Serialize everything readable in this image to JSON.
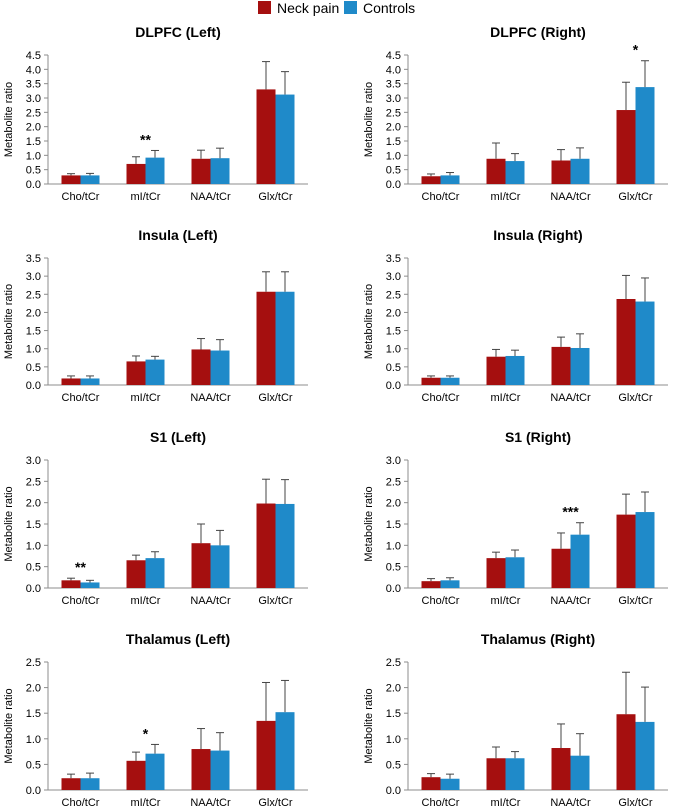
{
  "legend": {
    "series": [
      {
        "name": "Neck pain",
        "color": "#a50f0f"
      },
      {
        "name": "Controls",
        "color": "#1f8ac9"
      }
    ]
  },
  "chart_data": [
    {
      "type": "bar",
      "title": "DLPFC (Left)",
      "ylabel": "Metabolite ratio",
      "categories": [
        "Cho/tCr",
        "mI/tCr",
        "NAA/tCr",
        "Glx/tCr"
      ],
      "ylim": [
        0,
        4.5
      ],
      "ytick_step": 0.5,
      "ytick_labels": [
        "0.0",
        "0.5",
        "1.0",
        "1.5",
        "2.0",
        "2.5",
        "3.0",
        "3.5",
        "4.0",
        "4.5"
      ],
      "series": [
        {
          "name": "Neck pain",
          "values": [
            0.3,
            0.7,
            0.88,
            3.3
          ],
          "errors": [
            0.06,
            0.25,
            0.3,
            0.97
          ]
        },
        {
          "name": "Controls",
          "values": [
            0.3,
            0.92,
            0.9,
            3.12
          ],
          "errors": [
            0.07,
            0.25,
            0.35,
            0.8
          ]
        }
      ],
      "annotations": [
        {
          "category": "mI/tCr",
          "text": "**"
        }
      ]
    },
    {
      "type": "bar",
      "title": "DLPFC (Right)",
      "ylabel": "Metabolite ratio",
      "categories": [
        "Cho/tCr",
        "mI/tCr",
        "NAA/tCr",
        "Glx/tCr"
      ],
      "ylim": [
        0,
        4.5
      ],
      "ytick_step": 0.5,
      "ytick_labels": [
        "0.0",
        "0.5",
        "1.0",
        "1.5",
        "2.0",
        "2.5",
        "3.0",
        "3.5",
        "4.0",
        "4.5"
      ],
      "series": [
        {
          "name": "Neck pain",
          "values": [
            0.27,
            0.88,
            0.82,
            2.58
          ],
          "errors": [
            0.08,
            0.55,
            0.38,
            0.97
          ]
        },
        {
          "name": "Controls",
          "values": [
            0.3,
            0.8,
            0.88,
            3.38
          ],
          "errors": [
            0.1,
            0.26,
            0.38,
            0.92
          ]
        }
      ],
      "annotations": [
        {
          "category": "Glx/tCr",
          "text": "*"
        }
      ]
    },
    {
      "type": "bar",
      "title": "Insula (Left)",
      "ylabel": "Metabolite ratio",
      "categories": [
        "Cho/tCr",
        "mI/tCr",
        "NAA/tCr",
        "Glx/tCr"
      ],
      "ylim": [
        0,
        3.5
      ],
      "ytick_step": 0.5,
      "ytick_labels": [
        "0.0",
        "0.5",
        "1.0",
        "1.5",
        "2.0",
        "2.5",
        "3.0",
        "3.5"
      ],
      "series": [
        {
          "name": "Neck pain",
          "values": [
            0.18,
            0.65,
            0.98,
            2.57
          ],
          "errors": [
            0.07,
            0.15,
            0.3,
            0.55
          ]
        },
        {
          "name": "Controls",
          "values": [
            0.18,
            0.7,
            0.95,
            2.57
          ],
          "errors": [
            0.07,
            0.09,
            0.3,
            0.55
          ]
        }
      ],
      "annotations": []
    },
    {
      "type": "bar",
      "title": "Insula (Right)",
      "ylabel": "Metabolite ratio",
      "categories": [
        "Cho/tCr",
        "mI/tCr",
        "NAA/tCr",
        "Glx/tCr"
      ],
      "ylim": [
        0,
        3.5
      ],
      "ytick_step": 0.5,
      "ytick_labels": [
        "0.0",
        "0.5",
        "1.0",
        "1.5",
        "2.0",
        "2.5",
        "3.0",
        "3.5"
      ],
      "series": [
        {
          "name": "Neck pain",
          "values": [
            0.2,
            0.78,
            1.05,
            2.37
          ],
          "errors": [
            0.05,
            0.2,
            0.27,
            0.65
          ]
        },
        {
          "name": "Controls",
          "values": [
            0.2,
            0.8,
            1.02,
            2.3
          ],
          "errors": [
            0.05,
            0.16,
            0.39,
            0.65
          ]
        }
      ],
      "annotations": []
    },
    {
      "type": "bar",
      "title": "S1 (Left)",
      "ylabel": "Metabolite ratio",
      "categories": [
        "Cho/tCr",
        "mI/tCr",
        "NAA/tCr",
        "Glx/tCr"
      ],
      "ylim": [
        0,
        3.0
      ],
      "ytick_step": 0.5,
      "ytick_labels": [
        "0.0",
        "0.5",
        "1.0",
        "1.5",
        "2.0",
        "2.5",
        "3.0"
      ],
      "series": [
        {
          "name": "Neck pain",
          "values": [
            0.18,
            0.65,
            1.05,
            1.98
          ],
          "errors": [
            0.05,
            0.12,
            0.45,
            0.57
          ]
        },
        {
          "name": "Controls",
          "values": [
            0.13,
            0.7,
            1.0,
            1.97
          ],
          "errors": [
            0.05,
            0.15,
            0.35,
            0.57
          ]
        }
      ],
      "annotations": [
        {
          "category": "Cho/tCr",
          "text": "**"
        }
      ]
    },
    {
      "type": "bar",
      "title": "S1 (Right)",
      "ylabel": "Metabolite ratio",
      "categories": [
        "Cho/tCr",
        "mI/tCr",
        "NAA/tCr",
        "Glx/tCr"
      ],
      "ylim": [
        0,
        3.0
      ],
      "ytick_step": 0.5,
      "ytick_labels": [
        "0.0",
        "0.5",
        "1.0",
        "1.5",
        "2.0",
        "2.5",
        "3.0"
      ],
      "series": [
        {
          "name": "Neck pain",
          "values": [
            0.16,
            0.7,
            0.92,
            1.72
          ],
          "errors": [
            0.06,
            0.14,
            0.37,
            0.48
          ]
        },
        {
          "name": "Controls",
          "values": [
            0.18,
            0.72,
            1.25,
            1.78
          ],
          "errors": [
            0.06,
            0.17,
            0.28,
            0.47
          ]
        }
      ],
      "annotations": [
        {
          "category": "NAA/tCr",
          "text": "***"
        }
      ]
    },
    {
      "type": "bar",
      "title": "Thalamus (Left)",
      "ylabel": "Metabolite ratio",
      "categories": [
        "Cho/tCr",
        "mI/tCr",
        "NAA/tCr",
        "Glx/tCr"
      ],
      "ylim": [
        0,
        2.5
      ],
      "ytick_step": 0.5,
      "ytick_labels": [
        "0.0",
        "0.5",
        "1.0",
        "1.5",
        "2.0",
        "2.5"
      ],
      "series": [
        {
          "name": "Neck pain",
          "values": [
            0.23,
            0.57,
            0.8,
            1.35
          ],
          "errors": [
            0.08,
            0.17,
            0.4,
            0.75
          ]
        },
        {
          "name": "Controls",
          "values": [
            0.23,
            0.71,
            0.77,
            1.52
          ],
          "errors": [
            0.1,
            0.18,
            0.35,
            0.62
          ]
        }
      ],
      "annotations": [
        {
          "category": "mI/tCr",
          "text": "*"
        }
      ]
    },
    {
      "type": "bar",
      "title": "Thalamus (Right)",
      "ylabel": "Metabolite ratio",
      "categories": [
        "Cho/tCr",
        "mI/tCr",
        "NAA/tCr",
        "Glx/tCr"
      ],
      "ylim": [
        0,
        2.5
      ],
      "ytick_step": 0.5,
      "ytick_labels": [
        "0.0",
        "0.5",
        "1.0",
        "1.5",
        "2.0",
        "2.5"
      ],
      "series": [
        {
          "name": "Neck pain",
          "values": [
            0.25,
            0.62,
            0.82,
            1.48
          ],
          "errors": [
            0.07,
            0.22,
            0.47,
            0.82
          ]
        },
        {
          "name": "Controls",
          "values": [
            0.22,
            0.62,
            0.67,
            1.33
          ],
          "errors": [
            0.09,
            0.13,
            0.43,
            0.68
          ]
        }
      ],
      "annotations": []
    }
  ]
}
